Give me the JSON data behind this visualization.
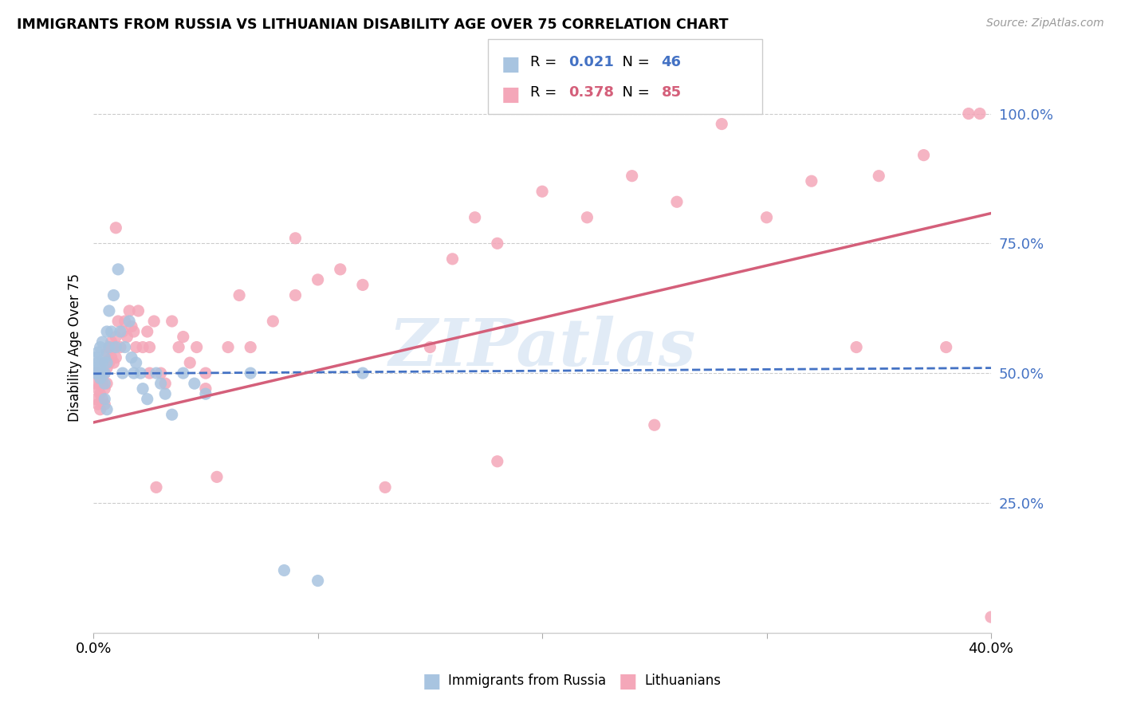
{
  "title": "IMMIGRANTS FROM RUSSIA VS LITHUANIAN DISABILITY AGE OVER 75 CORRELATION CHART",
  "source": "Source: ZipAtlas.com",
  "ylabel": "Disability Age Over 75",
  "xlim": [
    0.0,
    0.4
  ],
  "ylim": [
    0.0,
    1.1
  ],
  "yticks": [
    0.25,
    0.5,
    0.75,
    1.0
  ],
  "ytick_labels": [
    "25.0%",
    "50.0%",
    "75.0%",
    "100.0%"
  ],
  "xticks": [
    0.0,
    0.1,
    0.2,
    0.3,
    0.4
  ],
  "xtick_labels": [
    "0.0%",
    "",
    "",
    "",
    "40.0%"
  ],
  "series1_label": "Immigrants from Russia",
  "series1_R": "0.021",
  "series1_N": "46",
  "series1_color": "#a8c4e0",
  "series1_line_color": "#4472c4",
  "series2_label": "Lithuanians",
  "series2_R": "0.378",
  "series2_N": "85",
  "series2_color": "#f4a7b9",
  "series2_line_color": "#d45f7a",
  "watermark": "ZIPatlas",
  "background_color": "#ffffff",
  "grid_color": "#cccccc",
  "series1_x": [
    0.001,
    0.001,
    0.001,
    0.002,
    0.002,
    0.002,
    0.003,
    0.003,
    0.003,
    0.004,
    0.004,
    0.004,
    0.005,
    0.005,
    0.005,
    0.006,
    0.006,
    0.007,
    0.007,
    0.008,
    0.009,
    0.01,
    0.011,
    0.012,
    0.013,
    0.014,
    0.016,
    0.017,
    0.018,
    0.019,
    0.021,
    0.022,
    0.024,
    0.028,
    0.03,
    0.032,
    0.035,
    0.04,
    0.045,
    0.05,
    0.07,
    0.085,
    0.1,
    0.12,
    0.005,
    0.006
  ],
  "series1_y": [
    0.5,
    0.51,
    0.53,
    0.5,
    0.52,
    0.54,
    0.49,
    0.51,
    0.55,
    0.5,
    0.52,
    0.56,
    0.48,
    0.5,
    0.53,
    0.52,
    0.58,
    0.55,
    0.62,
    0.58,
    0.65,
    0.55,
    0.7,
    0.58,
    0.5,
    0.55,
    0.6,
    0.53,
    0.5,
    0.52,
    0.5,
    0.47,
    0.45,
    0.5,
    0.48,
    0.46,
    0.42,
    0.5,
    0.48,
    0.46,
    0.5,
    0.12,
    0.1,
    0.5,
    0.45,
    0.43
  ],
  "series2_x": [
    0.001,
    0.001,
    0.001,
    0.002,
    0.002,
    0.002,
    0.003,
    0.003,
    0.003,
    0.003,
    0.004,
    0.004,
    0.004,
    0.005,
    0.005,
    0.005,
    0.005,
    0.006,
    0.006,
    0.006,
    0.007,
    0.007,
    0.008,
    0.008,
    0.009,
    0.009,
    0.01,
    0.01,
    0.011,
    0.012,
    0.013,
    0.014,
    0.015,
    0.016,
    0.017,
    0.018,
    0.019,
    0.02,
    0.022,
    0.024,
    0.025,
    0.027,
    0.028,
    0.03,
    0.032,
    0.035,
    0.038,
    0.04,
    0.043,
    0.046,
    0.05,
    0.055,
    0.06,
    0.065,
    0.07,
    0.08,
    0.09,
    0.1,
    0.11,
    0.12,
    0.13,
    0.15,
    0.16,
    0.17,
    0.18,
    0.2,
    0.22,
    0.24,
    0.26,
    0.28,
    0.3,
    0.32,
    0.35,
    0.37,
    0.39,
    0.01,
    0.025,
    0.05,
    0.09,
    0.18,
    0.25,
    0.34,
    0.38,
    0.395,
    0.4
  ],
  "series2_y": [
    0.5,
    0.48,
    0.45,
    0.5,
    0.47,
    0.44,
    0.5,
    0.48,
    0.46,
    0.43,
    0.5,
    0.48,
    0.45,
    0.52,
    0.5,
    0.47,
    0.44,
    0.54,
    0.51,
    0.48,
    0.55,
    0.52,
    0.56,
    0.53,
    0.55,
    0.52,
    0.57,
    0.53,
    0.6,
    0.55,
    0.58,
    0.6,
    0.57,
    0.62,
    0.59,
    0.58,
    0.55,
    0.62,
    0.55,
    0.58,
    0.55,
    0.6,
    0.28,
    0.5,
    0.48,
    0.6,
    0.55,
    0.57,
    0.52,
    0.55,
    0.5,
    0.3,
    0.55,
    0.65,
    0.55,
    0.6,
    0.65,
    0.68,
    0.7,
    0.67,
    0.28,
    0.55,
    0.72,
    0.8,
    0.75,
    0.85,
    0.8,
    0.88,
    0.83,
    0.98,
    0.8,
    0.87,
    0.88,
    0.92,
    1.0,
    0.78,
    0.5,
    0.47,
    0.76,
    0.33,
    0.4,
    0.55,
    0.55,
    1.0,
    0.03
  ],
  "trend1_x0": 0.0,
  "trend1_x1": 0.4,
  "trend1_y0": 0.499,
  "trend1_y1": 0.51,
  "trend2_x0": 0.0,
  "trend2_x1": 0.4,
  "trend2_y0": 0.405,
  "trend2_y1": 0.808
}
